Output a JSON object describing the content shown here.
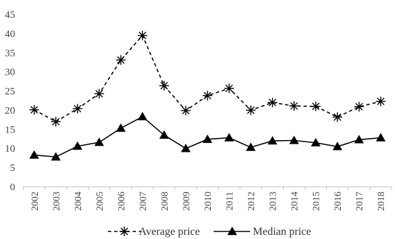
{
  "chart_data": {
    "type": "line",
    "title": "",
    "xlabel": "",
    "ylabel": "",
    "categories": [
      "2002",
      "2003",
      "2004",
      "2005",
      "2006",
      "2007",
      "2008",
      "2009",
      "2010",
      "2011",
      "2012",
      "2013",
      "2014",
      "2015",
      "2016",
      "2017",
      "2018"
    ],
    "ylim": [
      0,
      45
    ],
    "yticks": [
      0,
      5,
      10,
      15,
      20,
      25,
      30,
      35,
      40,
      45
    ],
    "grid": false,
    "legend_position": "bottom",
    "series": [
      {
        "name": "Average price",
        "style": "dashed",
        "marker": "asterisk",
        "color": "#000000",
        "values": [
          20.1,
          17.0,
          20.4,
          24.3,
          33.1,
          39.5,
          26.4,
          19.9,
          23.8,
          25.7,
          20.0,
          22.0,
          21.1,
          21.0,
          18.2,
          20.9,
          22.3
        ]
      },
      {
        "name": "Median price",
        "style": "solid",
        "marker": "triangle",
        "color": "#000000",
        "values": [
          8.3,
          7.8,
          10.6,
          11.6,
          15.3,
          18.3,
          13.5,
          10.0,
          12.4,
          12.8,
          10.3,
          12.0,
          12.1,
          11.5,
          10.5,
          12.3,
          12.8
        ]
      }
    ]
  }
}
